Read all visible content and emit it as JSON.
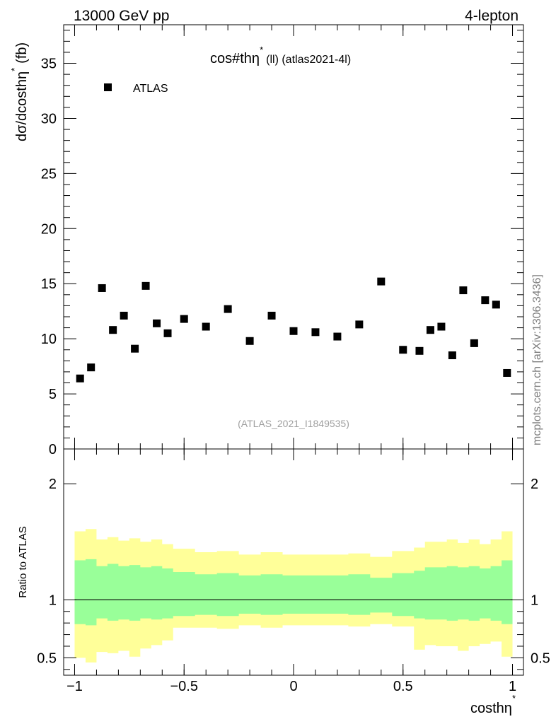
{
  "header": {
    "energy_label": "13000 GeV pp",
    "process_label": "4-lepton",
    "watermark": "mcplots.cern.ch [arXiv:1306.3436]"
  },
  "chart_data": [
    {
      "type": "scatter",
      "title_main": "cos#thη",
      "title_sup": "*",
      "title_rest": "(ll) (atlas2021-4l)",
      "ylabel_main": "dσ/dcosthη",
      "ylabel_sup": "*",
      "ylabel_unit": "(fb)",
      "analysis_id": "(ATLAS_2021_I1849535)",
      "xlim": [
        -1.05,
        1.05
      ],
      "ylim": [
        0,
        38.5
      ],
      "y_ticks": [
        0,
        5,
        10,
        15,
        20,
        25,
        30,
        35
      ],
      "legend_position": "top-left",
      "series": [
        {
          "name": "ATLAS",
          "x": [
            -0.975,
            -0.925,
            -0.875,
            -0.825,
            -0.775,
            -0.725,
            -0.675,
            -0.625,
            -0.575,
            -0.5,
            -0.4,
            -0.3,
            -0.2,
            -0.1,
            0.0,
            0.1,
            0.2,
            0.3,
            0.4,
            0.5,
            0.575,
            0.625,
            0.675,
            0.725,
            0.775,
            0.825,
            0.875,
            0.925,
            0.975
          ],
          "y": [
            6.4,
            7.4,
            14.6,
            10.8,
            12.1,
            9.1,
            14.8,
            11.4,
            10.5,
            11.8,
            11.1,
            12.7,
            9.8,
            12.1,
            10.7,
            10.6,
            10.2,
            11.3,
            15.2,
            9.0,
            8.9,
            10.8,
            11.1,
            8.5,
            14.4,
            9.6,
            13.5,
            13.1,
            6.9
          ]
        }
      ]
    },
    {
      "type": "area",
      "ylabel": "Ratio to ATLAS",
      "xlabel_main": "costhη",
      "xlabel_sup": "*",
      "xlim": [
        -1.05,
        1.05
      ],
      "ylim": [
        0.35,
        2.3
      ],
      "y_ticks": [
        0.5,
        1,
        2
      ],
      "x_ticks": [
        -1,
        -0.5,
        0,
        0.5,
        1
      ],
      "x_tick_labels": [
        "−1",
        "−0.5",
        "0",
        "0.5",
        "1"
      ],
      "bins": [
        -1.0,
        -0.95,
        -0.9,
        -0.85,
        -0.8,
        -0.75,
        -0.7,
        -0.65,
        -0.6,
        -0.55,
        -0.45,
        -0.35,
        -0.25,
        -0.15,
        -0.05,
        0.05,
        0.15,
        0.25,
        0.35,
        0.45,
        0.55,
        0.6,
        0.65,
        0.7,
        0.75,
        0.8,
        0.85,
        0.9,
        0.95,
        1.0
      ],
      "inner_band_up": [
        1.34,
        1.35,
        1.29,
        1.31,
        1.29,
        1.3,
        1.28,
        1.29,
        1.27,
        1.24,
        1.22,
        1.23,
        1.21,
        1.22,
        1.21,
        1.21,
        1.21,
        1.22,
        1.19,
        1.23,
        1.25,
        1.28,
        1.28,
        1.29,
        1.28,
        1.29,
        1.27,
        1.29,
        1.34
      ],
      "inner_band_down": [
        0.79,
        0.78,
        0.84,
        0.82,
        0.83,
        0.82,
        0.84,
        0.83,
        0.84,
        0.86,
        0.87,
        0.86,
        0.88,
        0.87,
        0.88,
        0.88,
        0.88,
        0.87,
        0.89,
        0.86,
        0.84,
        0.83,
        0.83,
        0.82,
        0.83,
        0.82,
        0.84,
        0.82,
        0.79
      ],
      "outer_band_up": [
        1.59,
        1.61,
        1.52,
        1.54,
        1.51,
        1.53,
        1.5,
        1.52,
        1.48,
        1.44,
        1.41,
        1.42,
        1.39,
        1.41,
        1.39,
        1.39,
        1.39,
        1.4,
        1.37,
        1.42,
        1.45,
        1.5,
        1.5,
        1.52,
        1.49,
        1.52,
        1.48,
        1.52,
        1.59
      ],
      "outer_band_down": [
        0.5,
        0.46,
        0.55,
        0.54,
        0.56,
        0.51,
        0.58,
        0.61,
        0.65,
        0.76,
        0.76,
        0.75,
        0.78,
        0.76,
        0.78,
        0.78,
        0.78,
        0.77,
        0.79,
        0.77,
        0.57,
        0.61,
        0.6,
        0.6,
        0.56,
        0.6,
        0.62,
        0.64,
        0.51
      ],
      "reference_line": 1,
      "colors": {
        "inner": "#99ff99",
        "outer": "#ffff99"
      }
    }
  ]
}
